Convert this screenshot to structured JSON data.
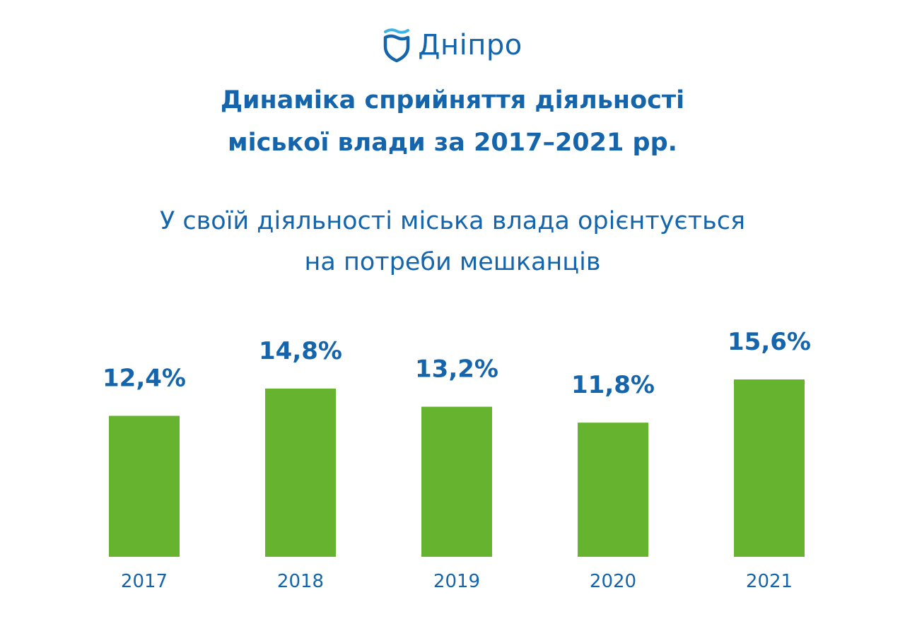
{
  "logo": {
    "icon": "shield-wave-icon",
    "text": "Дніпро"
  },
  "colors": {
    "brand_blue": "#1565ad",
    "logo_wave": "#3bb4e5",
    "bar_green": "#65b32e"
  },
  "chart_data": {
    "type": "bar",
    "title_lines": [
      "Динаміка сприйняття діяльності",
      "міської влади за 2017–2021 рр."
    ],
    "subtitle_lines": [
      "У своїй діяльності міська влада орієнтується",
      "на потреби мешканців"
    ],
    "categories": [
      "2017",
      "2018",
      "2019",
      "2020",
      "2021"
    ],
    "values": [
      12.4,
      14.8,
      13.2,
      11.8,
      15.6
    ],
    "value_labels": [
      "12,4%",
      "14,8%",
      "13,2%",
      "11,8%",
      "15,6%"
    ],
    "xlabel": "",
    "ylabel": "",
    "ylim": [
      0,
      15.6
    ],
    "grid": false,
    "legend": "none"
  }
}
